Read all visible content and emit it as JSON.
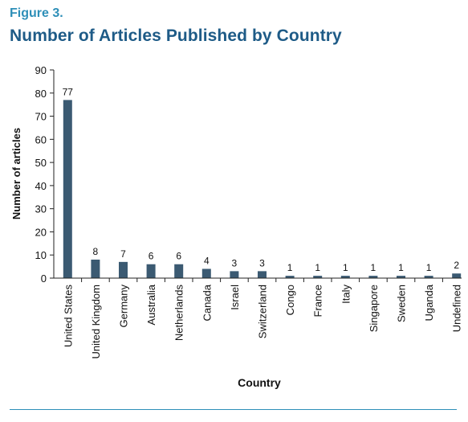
{
  "figure": {
    "label": "Figure 3.",
    "title": "Number of Articles Published by Country"
  },
  "colors": {
    "bar": "#3b5a72",
    "axis": "#222222",
    "label_accent": "#2e8fb8",
    "title_accent": "#1e5b87"
  },
  "chart_data": {
    "type": "bar",
    "title": "Number of Articles Published by Country",
    "xlabel": "Country",
    "ylabel": "Number of articles",
    "ylim": [
      0,
      90
    ],
    "yticks": [
      0,
      10,
      20,
      30,
      40,
      50,
      60,
      70,
      80,
      90
    ],
    "grid": false,
    "categories": [
      "United States",
      "United Kingdom",
      "Germany",
      "Australia",
      "Netherlands",
      "Canada",
      "Israel",
      "Switzerland",
      "Congo",
      "France",
      "Italy",
      "Singapore",
      "Sweden",
      "Uganda",
      "Undefined"
    ],
    "values": [
      77,
      8,
      7,
      6,
      6,
      4,
      3,
      3,
      1,
      1,
      1,
      1,
      1,
      1,
      2
    ],
    "data_labels": [
      "77",
      "8",
      "7",
      "6",
      "6",
      "4",
      "3",
      "3",
      "1",
      "1",
      "1",
      "1",
      "1",
      "1",
      "2"
    ]
  }
}
